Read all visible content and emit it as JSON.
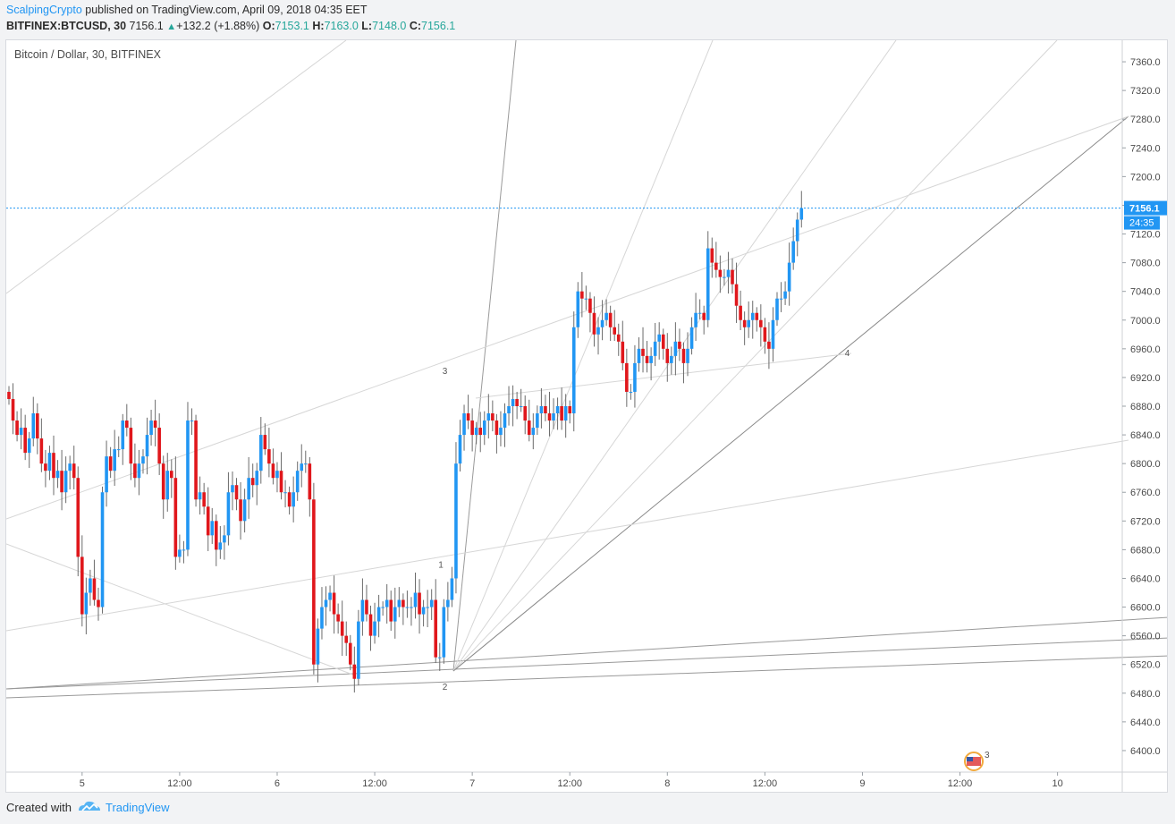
{
  "header": {
    "author": "ScalpingCrypto",
    "published_text": "published on TradingView.com, April 09, 2018 04:35 EET",
    "symbol": "BITFINEX:BTCUSD, 30",
    "last": "7156.1",
    "change": "+132.2 (+1.88%)",
    "o_label": "O:",
    "o": "7153.1",
    "h_label": "H:",
    "h": "7163.0",
    "l_label": "L:",
    "l": "7148.0",
    "c_label": "C:",
    "c": "7156.1"
  },
  "footer": {
    "created_with": "Created with",
    "brand": "TradingView"
  },
  "colors": {
    "up": "#2196f3",
    "down": "#e0171c",
    "accent": "#2196f3",
    "grid_line": "#9a9a9a"
  },
  "chart_data": {
    "type": "candlestick",
    "title": "Bitcoin / Dollar, 30, BITFINEX",
    "ylim": [
      6370,
      7390
    ],
    "y_ticks": [
      6400,
      6440,
      6480,
      6520,
      6560,
      6600,
      6640,
      6680,
      6720,
      6760,
      6800,
      6840,
      6880,
      6920,
      6960,
      7000,
      7040,
      7080,
      7120,
      7160,
      7200,
      7240,
      7280,
      7320,
      7360
    ],
    "y_tick_labels": [
      "6400.0",
      "6440.0",
      "6480.0",
      "6520.0",
      "6560.0",
      "6600.0",
      "6640.0",
      "6680.0",
      "6720.0",
      "6760.0",
      "6800.0",
      "6840.0",
      "6880.0",
      "6920.0",
      "6960.0",
      "7000.0",
      "7040.0",
      "7080.0",
      "7120.0",
      "7160.0",
      "7200.0",
      "7240.0",
      "7280.0",
      "7320.0",
      "7360.0"
    ],
    "x_ticks": [
      {
        "index": 7,
        "label": "5"
      },
      {
        "index": 31,
        "label": "12:00"
      },
      {
        "index": 55,
        "label": "6"
      },
      {
        "index": 79,
        "label": "12:00"
      },
      {
        "index": 103,
        "label": "7"
      },
      {
        "index": 127,
        "label": "12:00"
      },
      {
        "index": 151,
        "label": "8"
      },
      {
        "index": 175,
        "label": "12:00"
      },
      {
        "index": 199,
        "label": "9"
      },
      {
        "index": 223,
        "label": "12:00"
      },
      {
        "index": 247,
        "label": "10"
      }
    ],
    "last_price": "7156.1",
    "countdown": "24:35",
    "wave_labels": [
      {
        "label": "1",
        "index": 105,
        "y": 6655
      },
      {
        "label": "2",
        "index": 106,
        "y": 6485
      },
      {
        "label": "3",
        "index": 106,
        "y": 6925
      },
      {
        "label": "4",
        "index": 205,
        "y": 6950
      }
    ],
    "event_badge": "3",
    "closes": [
      6890,
      6860,
      6840,
      6850,
      6815,
      6835,
      6870,
      6835,
      6800,
      6790,
      6815,
      6780,
      6790,
      6760,
      6790,
      6800,
      6780,
      6670,
      6590,
      6620,
      6640,
      6610,
      6600,
      6760,
      6810,
      6790,
      6820,
      6820,
      6860,
      6850,
      6800,
      6780,
      6800,
      6810,
      6840,
      6860,
      6850,
      6800,
      6750,
      6790,
      6780,
      6670,
      6680,
      6680,
      6860,
      6860,
      6750,
      6760,
      6740,
      6700,
      6720,
      6680,
      6690,
      6700,
      6760,
      6770,
      6750,
      6720,
      6750,
      6780,
      6770,
      6790,
      6840,
      6820,
      6800,
      6780,
      6790,
      6760,
      6760,
      6740,
      6760,
      6790,
      6800,
      6800,
      6750,
      6520,
      6570,
      6600,
      6610,
      6620,
      6590,
      6580,
      6560,
      6550,
      6520,
      6500,
      6580,
      6610,
      6590,
      6560,
      6580,
      6600,
      6600,
      6610,
      6580,
      6600,
      6610,
      6600,
      6600,
      6600,
      6620,
      6590,
      6600,
      6600,
      6610,
      6530,
      6530,
      6600,
      6610,
      6640,
      6800,
      6840,
      6870,
      6860,
      6840,
      6850,
      6840,
      6860,
      6870,
      6860,
      6840,
      6850,
      6870,
      6880,
      6890,
      6880,
      6880,
      6860,
      6840,
      6850,
      6870,
      6880,
      6870,
      6860,
      6870,
      6880,
      6860,
      6880,
      6870,
      6990,
      7040,
      7030,
      7030,
      7010,
      6980,
      6990,
      7000,
      7010,
      6990,
      6980,
      6970,
      6940,
      6900,
      6900,
      6940,
      6960,
      6950,
      6940,
      6950,
      6970,
      6980,
      6960,
      6940,
      6950,
      6970,
      6960,
      6940,
      6960,
      6990,
      7010,
      7010,
      7000,
      7100,
      7080,
      7070,
      7060,
      7060,
      7070,
      7050,
      7020,
      7000,
      6990,
      7000,
      7010,
      7000,
      6990,
      6970,
      6960,
      7000,
      7030,
      7030,
      7040,
      7080,
      7110,
      7140,
      7156
    ]
  }
}
